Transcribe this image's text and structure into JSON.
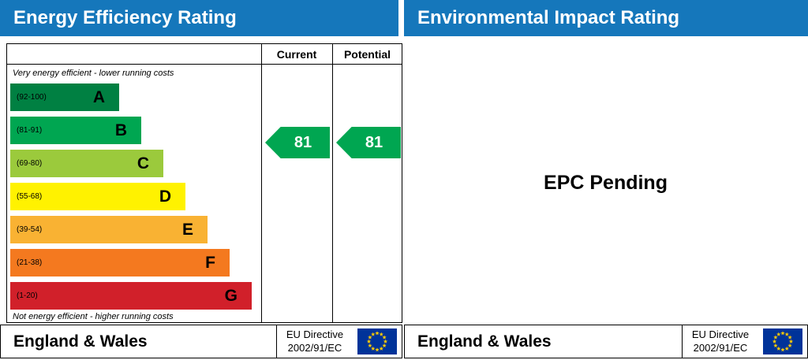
{
  "colors": {
    "header_bg": "#1577bb",
    "header_text": "#ffffff",
    "arrow": "#00a651",
    "eu_flag_bg": "#003399",
    "eu_flag_stars": "#ffcc00"
  },
  "icons": {
    "eu_flag": "circle-of-12-stars-on-blue"
  },
  "energy_panel": {
    "title": "Energy Efficiency Rating",
    "col_current": "Current",
    "col_potential": "Potential",
    "top_note": "Very energy efficient - lower running costs",
    "bottom_note": "Not energy efficient - higher running costs",
    "footer": {
      "region": "England & Wales",
      "directive": [
        "EU Directive",
        "2002/91/EC"
      ]
    }
  },
  "impact_panel": {
    "title": "Environmental Impact Rating",
    "message": "EPC Pending",
    "footer": {
      "region": "England & Wales",
      "directive": [
        "EU Directive",
        "2002/91/EC"
      ]
    }
  },
  "chart_data": {
    "type": "bar",
    "title": "Energy Efficiency Rating",
    "bands": [
      {
        "letter": "A",
        "label": "(92-100)",
        "min": 92,
        "max": 100,
        "color": "#008042"
      },
      {
        "letter": "B",
        "label": "(81-91)",
        "min": 81,
        "max": 91,
        "color": "#00a651"
      },
      {
        "letter": "C",
        "label": "(69-80)",
        "min": 69,
        "max": 80,
        "color": "#9bca3c"
      },
      {
        "letter": "D",
        "label": "(55-68)",
        "min": 55,
        "max": 68,
        "color": "#fff200"
      },
      {
        "letter": "E",
        "label": "(39-54)",
        "min": 39,
        "max": 54,
        "color": "#f9b233"
      },
      {
        "letter": "F",
        "label": "(21-38)",
        "min": 21,
        "max": 38,
        "color": "#f4791f"
      },
      {
        "letter": "G",
        "label": "(1-20)",
        "min": 1,
        "max": 20,
        "color": "#d1202a"
      }
    ],
    "series": [
      {
        "name": "Current",
        "value": 81,
        "band": "B"
      },
      {
        "name": "Potential",
        "value": 81,
        "band": "B"
      }
    ],
    "value_range": [
      1,
      100
    ],
    "legend_position": "top-columns",
    "grid": false
  }
}
